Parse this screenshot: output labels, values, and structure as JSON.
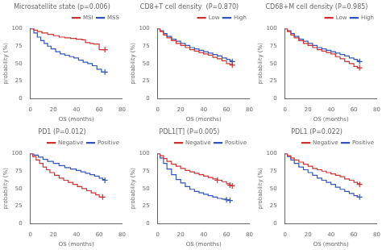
{
  "chart_data": [
    {
      "type": "step",
      "title": "Microsatellite state (p=0.006)",
      "x_label": "OS (months)",
      "y_label": "probability (%)",
      "xlim": [
        0,
        80
      ],
      "ylim": [
        0,
        100
      ],
      "xticks": [
        0,
        20,
        40,
        60,
        80
      ],
      "yticks": [
        0,
        25,
        50,
        75,
        100
      ],
      "grid": false,
      "legend": "upper right",
      "series": [
        {
          "name": "MSI",
          "color": "#cc3333",
          "marker": "+",
          "x": [
            0,
            3,
            6,
            10,
            15,
            20,
            25,
            30,
            35,
            40,
            45,
            48,
            52,
            55,
            60,
            63,
            65
          ],
          "values": [
            100,
            98,
            96,
            94,
            92,
            90,
            88,
            87,
            86,
            85,
            84,
            80,
            79,
            78,
            70,
            70,
            70
          ],
          "censor_x": [
            65
          ],
          "censor_y": [
            70
          ]
        },
        {
          "name": "MSS",
          "color": "#3355bb",
          "marker": "+",
          "x": [
            0,
            3,
            6,
            9,
            12,
            15,
            18,
            22,
            26,
            30,
            34,
            38,
            42,
            46,
            50,
            54,
            58,
            62,
            65
          ],
          "values": [
            100,
            94,
            88,
            83,
            79,
            75,
            71,
            67,
            64,
            62,
            60,
            58,
            55,
            52,
            50,
            47,
            42,
            38,
            38
          ],
          "censor_x": [
            65
          ],
          "censor_y": [
            38
          ]
        }
      ]
    },
    {
      "type": "step",
      "title": "CD8+T cell density  (P=0.870)",
      "x_label": "OS (months)",
      "y_label": "probability (%)",
      "xlim": [
        0,
        80
      ],
      "ylim": [
        0,
        100
      ],
      "xticks": [
        0,
        20,
        40,
        60,
        80
      ],
      "yticks": [
        0,
        25,
        50,
        75,
        100
      ],
      "grid": false,
      "legend": "upper right",
      "series": [
        {
          "name": "Low",
          "color": "#cc3333",
          "marker": "+",
          "x": [
            0,
            2,
            5,
            8,
            12,
            16,
            20,
            24,
            28,
            32,
            36,
            40,
            44,
            48,
            52,
            56,
            60,
            63,
            65
          ],
          "values": [
            100,
            96,
            91,
            87,
            83,
            79,
            76,
            73,
            70,
            68,
            66,
            64,
            62,
            59,
            57,
            54,
            50,
            49,
            48
          ],
          "censor_x": [
            65
          ],
          "censor_y": [
            48
          ]
        },
        {
          "name": "High",
          "color": "#3355bb",
          "marker": "+",
          "x": [
            0,
            2,
            5,
            8,
            12,
            16,
            20,
            24,
            28,
            32,
            36,
            40,
            44,
            48,
            52,
            56,
            60,
            63,
            65
          ],
          "values": [
            100,
            97,
            93,
            89,
            85,
            82,
            79,
            76,
            73,
            71,
            69,
            67,
            65,
            63,
            61,
            58,
            56,
            54,
            53
          ],
          "censor_x": [
            65
          ],
          "censor_y": [
            53
          ]
        }
      ]
    },
    {
      "type": "step",
      "title": "CD68+M cell density (P=0.985)",
      "x_label": "OS (months)",
      "y_label": "probability (%)",
      "xlim": [
        0,
        80
      ],
      "ylim": [
        0,
        100
      ],
      "xticks": [
        0,
        20,
        40,
        60,
        80
      ],
      "yticks": [
        0,
        25,
        50,
        75,
        100
      ],
      "grid": false,
      "legend": "upper right",
      "series": [
        {
          "name": "Low",
          "color": "#cc3333",
          "marker": "+",
          "x": [
            0,
            2,
            5,
            8,
            12,
            16,
            20,
            24,
            28,
            32,
            36,
            40,
            44,
            48,
            52,
            56,
            60,
            63,
            65
          ],
          "values": [
            100,
            96,
            91,
            87,
            83,
            79,
            76,
            73,
            70,
            68,
            66,
            64,
            60,
            57,
            53,
            50,
            46,
            44,
            44
          ],
          "censor_x": [
            65
          ],
          "censor_y": [
            44
          ]
        },
        {
          "name": "High",
          "color": "#3355bb",
          "marker": "+",
          "x": [
            0,
            2,
            5,
            8,
            12,
            16,
            20,
            24,
            28,
            32,
            36,
            40,
            44,
            48,
            52,
            56,
            60,
            63,
            65
          ],
          "values": [
            100,
            97,
            93,
            89,
            85,
            82,
            79,
            76,
            73,
            71,
            69,
            67,
            65,
            63,
            61,
            58,
            56,
            54,
            53
          ],
          "censor_x": [
            65
          ],
          "censor_y": [
            53
          ]
        }
      ]
    },
    {
      "type": "step",
      "title": "PD1 (P=0.012)",
      "x_label": "OS (months)",
      "y_label": "probability (%)",
      "xlim": [
        0,
        80
      ],
      "ylim": [
        0,
        100
      ],
      "xticks": [
        0,
        20,
        40,
        60,
        80
      ],
      "yticks": [
        0,
        25,
        50,
        75,
        100
      ],
      "grid": false,
      "legend": "upper right",
      "series": [
        {
          "name": "Negative",
          "color": "#cc3333",
          "marker": "+",
          "x": [
            0,
            2,
            5,
            8,
            11,
            14,
            17,
            21,
            25,
            29,
            33,
            37,
            41,
            45,
            49,
            53,
            57,
            60,
            63
          ],
          "values": [
            100,
            96,
            91,
            86,
            81,
            77,
            73,
            69,
            65,
            62,
            59,
            56,
            53,
            50,
            47,
            44,
            41,
            38,
            38
          ],
          "censor_x": [
            63
          ],
          "censor_y": [
            38
          ]
        },
        {
          "name": "Positive",
          "color": "#3355bb",
          "marker": "+",
          "x": [
            0,
            3,
            7,
            11,
            15,
            20,
            25,
            30,
            35,
            40,
            44,
            48,
            52,
            56,
            60,
            63,
            65
          ],
          "values": [
            100,
            98,
            95,
            92,
            89,
            86,
            83,
            80,
            78,
            76,
            74,
            72,
            70,
            68,
            65,
            63,
            62
          ],
          "censor_x": [
            65
          ],
          "censor_y": [
            62
          ]
        }
      ]
    },
    {
      "type": "step",
      "title": "PDL1[T] (P=0.005)",
      "x_label": "OS (months)",
      "y_label": "probability (%)",
      "xlim": [
        0,
        80
      ],
      "ylim": [
        0,
        100
      ],
      "xticks": [
        0,
        20,
        40,
        60,
        80
      ],
      "yticks": [
        0,
        25,
        50,
        75,
        100
      ],
      "grid": false,
      "legend": "upper right",
      "series": [
        {
          "name": "Negative",
          "color": "#cc3333",
          "marker": "+",
          "x": [
            0,
            2,
            5,
            8,
            12,
            16,
            20,
            24,
            28,
            32,
            36,
            40,
            44,
            48,
            52,
            56,
            60,
            63,
            65
          ],
          "values": [
            100,
            97,
            93,
            89,
            85,
            82,
            79,
            76,
            74,
            72,
            70,
            68,
            66,
            64,
            62,
            60,
            57,
            55,
            54
          ],
          "censor_x": [
            52,
            63,
            65
          ],
          "censor_y": [
            62,
            55,
            54
          ]
        },
        {
          "name": "Positive",
          "color": "#3355bb",
          "marker": "+",
          "x": [
            0,
            2,
            5,
            8,
            12,
            16,
            20,
            24,
            28,
            32,
            36,
            40,
            44,
            48,
            52,
            56,
            60,
            63
          ],
          "values": [
            100,
            94,
            86,
            78,
            70,
            63,
            58,
            53,
            49,
            46,
            44,
            42,
            40,
            38,
            36,
            35,
            34,
            33
          ],
          "censor_x": [
            60,
            63
          ],
          "censor_y": [
            34,
            33
          ]
        }
      ]
    },
    {
      "type": "step",
      "title": "PDL1 (P=0.022)",
      "x_label": "OS (months)",
      "y_label": "probability (%)",
      "xlim": [
        0,
        80
      ],
      "ylim": [
        0,
        100
      ],
      "xticks": [
        0,
        20,
        40,
        60,
        80
      ],
      "yticks": [
        0,
        25,
        50,
        75,
        100
      ],
      "grid": false,
      "legend": "upper right",
      "series": [
        {
          "name": "Negative",
          "color": "#cc3333",
          "marker": "+",
          "x": [
            0,
            2,
            5,
            8,
            12,
            16,
            20,
            24,
            28,
            32,
            36,
            40,
            44,
            48,
            52,
            56,
            60,
            63,
            65
          ],
          "values": [
            100,
            97,
            94,
            91,
            88,
            85,
            82,
            79,
            77,
            75,
            73,
            71,
            69,
            67,
            64,
            62,
            59,
            57,
            56
          ],
          "censor_x": [
            65
          ],
          "censor_y": [
            56
          ]
        },
        {
          "name": "Positive",
          "color": "#3355bb",
          "marker": "+",
          "x": [
            0,
            2,
            5,
            8,
            12,
            16,
            20,
            24,
            28,
            32,
            36,
            40,
            44,
            48,
            52,
            56,
            60,
            63,
            65
          ],
          "values": [
            100,
            96,
            91,
            86,
            81,
            77,
            73,
            69,
            65,
            62,
            59,
            56,
            52,
            49,
            46,
            43,
            40,
            38,
            38
          ],
          "censor_x": [
            65
          ],
          "censor_y": [
            38
          ]
        }
      ]
    }
  ]
}
